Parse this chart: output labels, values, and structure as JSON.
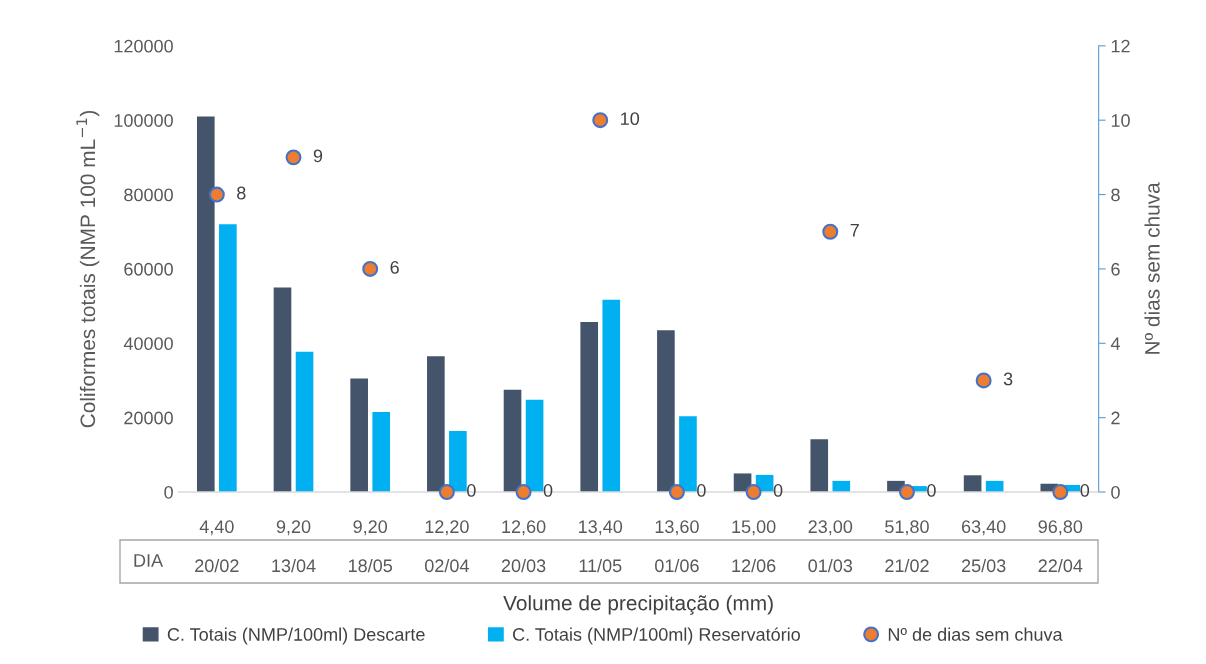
{
  "chart_data": {
    "type": "bar",
    "xlabel": "Volume de precipitação (mm)",
    "ylabel": "Coliformes totais (NMP 100 mL$^{−1}$)",
    "y2label": "Nº dias sem chuva",
    "categories": [
      "4,40\n20/02",
      "9,20\n13/04",
      "9,20\n18/05",
      "12,20\n02/04",
      "12,60\n20/03",
      "13,40\n11/05",
      "13,60\n01/06",
      "15,00\n12/06",
      "23,00\n01/03",
      "51,80\n21/02",
      "63,40\n25/03",
      "96,80\n22/04"
    ],
    "annotations": [
      "DIA"
    ],
    "series": [
      {
        "name": "C. Totais (NMP/100ml) Descarte",
        "color": "#44546a",
        "values": [
          101000,
          55000,
          30500,
          36500,
          27500,
          45700,
          43500,
          5000,
          14200,
          3000,
          4500,
          2200
        ]
      },
      {
        "name": "C. Totais (NMP/100ml) Reservatório",
        "color": "#00b0f0",
        "values": [
          72000,
          37700,
          21500,
          16400,
          24800,
          51700,
          20400,
          4600,
          3000,
          1600,
          3000,
          1900
        ]
      },
      {
        "name": "Nº de dias sem chuva",
        "type": "scatter",
        "axis": "y2",
        "color": "#ed7d31",
        "values": [
          8,
          9,
          6,
          0,
          0,
          10,
          0,
          0,
          7,
          0,
          3,
          0
        ],
        "value_labels": [
          "8",
          "9",
          "6",
          "0",
          "0",
          "10",
          "0",
          "0",
          "7",
          "0",
          "3",
          "0"
        ]
      }
    ],
    "ylim": [
      0,
      120000
    ],
    "yticks": [
      0,
      20000,
      40000,
      60000,
      80000,
      100000,
      120000
    ],
    "y2lim": [
      0,
      12
    ],
    "y2ticks": [
      0,
      2,
      4,
      6,
      8,
      10,
      12
    ],
    "grid": false,
    "legend": "bottom",
    "marker": "circle"
  }
}
